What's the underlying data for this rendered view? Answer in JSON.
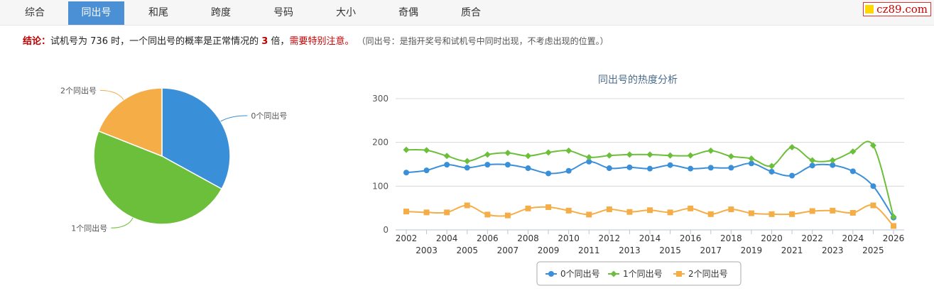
{
  "tabs": [
    {
      "label": "综合",
      "active": false
    },
    {
      "label": "同出号",
      "active": true
    },
    {
      "label": "和尾",
      "active": false
    },
    {
      "label": "跨度",
      "active": false
    },
    {
      "label": "号码",
      "active": false
    },
    {
      "label": "大小",
      "active": false
    },
    {
      "label": "奇偶",
      "active": false
    },
    {
      "label": "质合",
      "active": false
    }
  ],
  "logo": {
    "text": "cz89.com"
  },
  "conclusion": {
    "label": "结论：",
    "text1": "试机号为 736 时，一个同出号的概率是正常情况的",
    "multiplier": "3",
    "text2": "倍，",
    "warning": "需要特别注意。",
    "note": "（同出号：是指开奖号和试机号中同时出现，不考虑出现的位置。）"
  },
  "colors": {
    "blue": "#3a8fd9",
    "green": "#6cbf3a",
    "orange": "#f5ad47",
    "red": "#b00000"
  },
  "chart_data": [
    {
      "type": "pie",
      "labels": [
        "0个同出号",
        "1个同出号",
        "2个同出号"
      ],
      "values": [
        33,
        48,
        19
      ],
      "colors": [
        "#3a8fd9",
        "#6cbf3a",
        "#f5ad47"
      ]
    },
    {
      "type": "line",
      "title": "同出号的热度分析",
      "x": [
        "2002",
        "2003",
        "2004",
        "2005",
        "2006",
        "2007",
        "2008",
        "2009",
        "2010",
        "2011",
        "2012",
        "2013",
        "2014",
        "2015",
        "2016",
        "2017",
        "2018",
        "2019",
        "2020",
        "2021",
        "2022",
        "2023",
        "2024",
        "2025",
        "2026"
      ],
      "ylim": [
        0,
        300
      ],
      "yticks": [
        0,
        100,
        200,
        300
      ],
      "grid": true,
      "legend": "bottom",
      "series": [
        {
          "name": "0个同出号",
          "color": "#3a8fd9",
          "marker": "circle",
          "values": [
            131,
            136,
            149,
            142,
            149,
            149,
            141,
            129,
            135,
            156,
            141,
            143,
            140,
            148,
            140,
            142,
            142,
            152,
            133,
            124,
            147,
            148,
            134,
            100,
            28
          ]
        },
        {
          "name": "1个同出号",
          "color": "#6cbf3a",
          "marker": "diamond",
          "values": [
            183,
            182,
            169,
            157,
            172,
            176,
            169,
            177,
            181,
            166,
            170,
            172,
            172,
            170,
            170,
            181,
            168,
            163,
            146,
            189,
            159,
            159,
            179,
            193,
            30
          ]
        },
        {
          "name": "2个同出号",
          "color": "#f5ad47",
          "marker": "square",
          "values": [
            42,
            40,
            40,
            56,
            35,
            33,
            49,
            52,
            44,
            35,
            47,
            41,
            45,
            40,
            49,
            36,
            47,
            38,
            36,
            36,
            43,
            44,
            39,
            56,
            9
          ]
        }
      ]
    }
  ]
}
